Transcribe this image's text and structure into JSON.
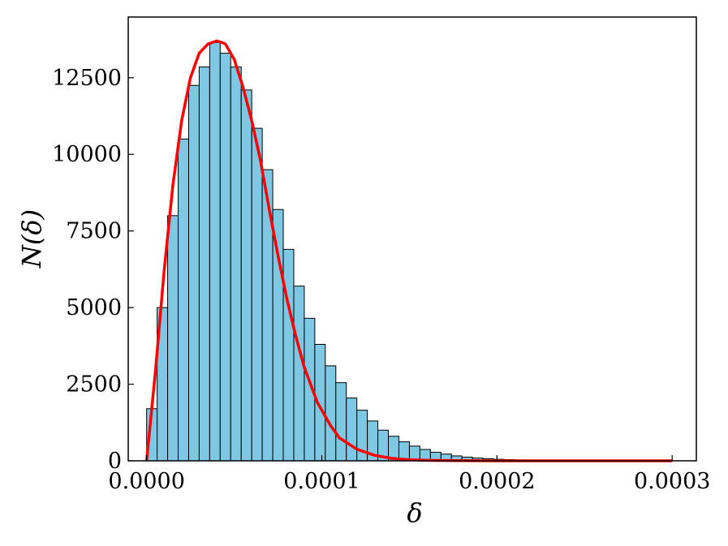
{
  "chart_data": {
    "type": "bar",
    "title": "",
    "xlabel": "δ",
    "ylabel": "N(δ)",
    "xlim": [
      -1.05e-05,
      0.0003138
    ],
    "ylim": [
      0,
      14480
    ],
    "xticks": [
      0.0,
      0.0001,
      0.0002,
      0.0003
    ],
    "xtick_labels": [
      "0.0000",
      "0.0001",
      "0.0002",
      "0.0003"
    ],
    "yticks": [
      0,
      2500,
      5000,
      7500,
      10000,
      12500
    ],
    "ytick_labels": [
      "0",
      "2500",
      "5000",
      "7500",
      "10000",
      "12500"
    ],
    "grid": false,
    "legend": "none",
    "bin_width": 6e-06,
    "bins_start": 0.0,
    "values": [
      1700,
      5000,
      8000,
      10500,
      12250,
      12850,
      13650,
      13300,
      12850,
      12100,
      10850,
      9500,
      8200,
      6900,
      5700,
      4650,
      3800,
      3100,
      2550,
      2050,
      1650,
      1300,
      1000,
      800,
      620,
      480,
      370,
      280,
      220,
      160,
      120,
      90,
      70,
      50,
      40,
      30,
      20,
      15,
      10,
      8,
      6,
      5,
      4,
      3,
      2,
      2,
      1,
      1,
      1,
      1
    ],
    "fit_curve": {
      "type": "line",
      "x": [
        0.0,
        5e-06,
        1e-05,
        1.5e-05,
        2e-05,
        2.5e-05,
        3e-05,
        3.5e-05,
        4e-05,
        4.3e-05,
        4.5e-05,
        5e-05,
        5.5e-05,
        6e-05,
        6.5e-05,
        7e-05,
        7.5e-05,
        8e-05,
        8.5e-05,
        9e-05,
        9.75e-05,
        0.000105,
        0.00011,
        0.00012,
        0.00013,
        0.00014,
        0.00015,
        0.00016,
        0.000175,
        0.0002,
        0.00025,
        0.0003
      ],
      "y": [
        0,
        2900,
        6200,
        9000,
        11100,
        12500,
        13300,
        13600,
        13700,
        13650,
        13600,
        13100,
        12200,
        11100,
        9800,
        8200,
        6700,
        5300,
        4100,
        3050,
        1900,
        1150,
        750,
        380,
        180,
        80,
        35,
        15,
        5,
        1,
        0,
        0
      ],
      "color": "#ff0000"
    },
    "bar_color": "#7ec8e3",
    "edge_color": "#000000"
  }
}
